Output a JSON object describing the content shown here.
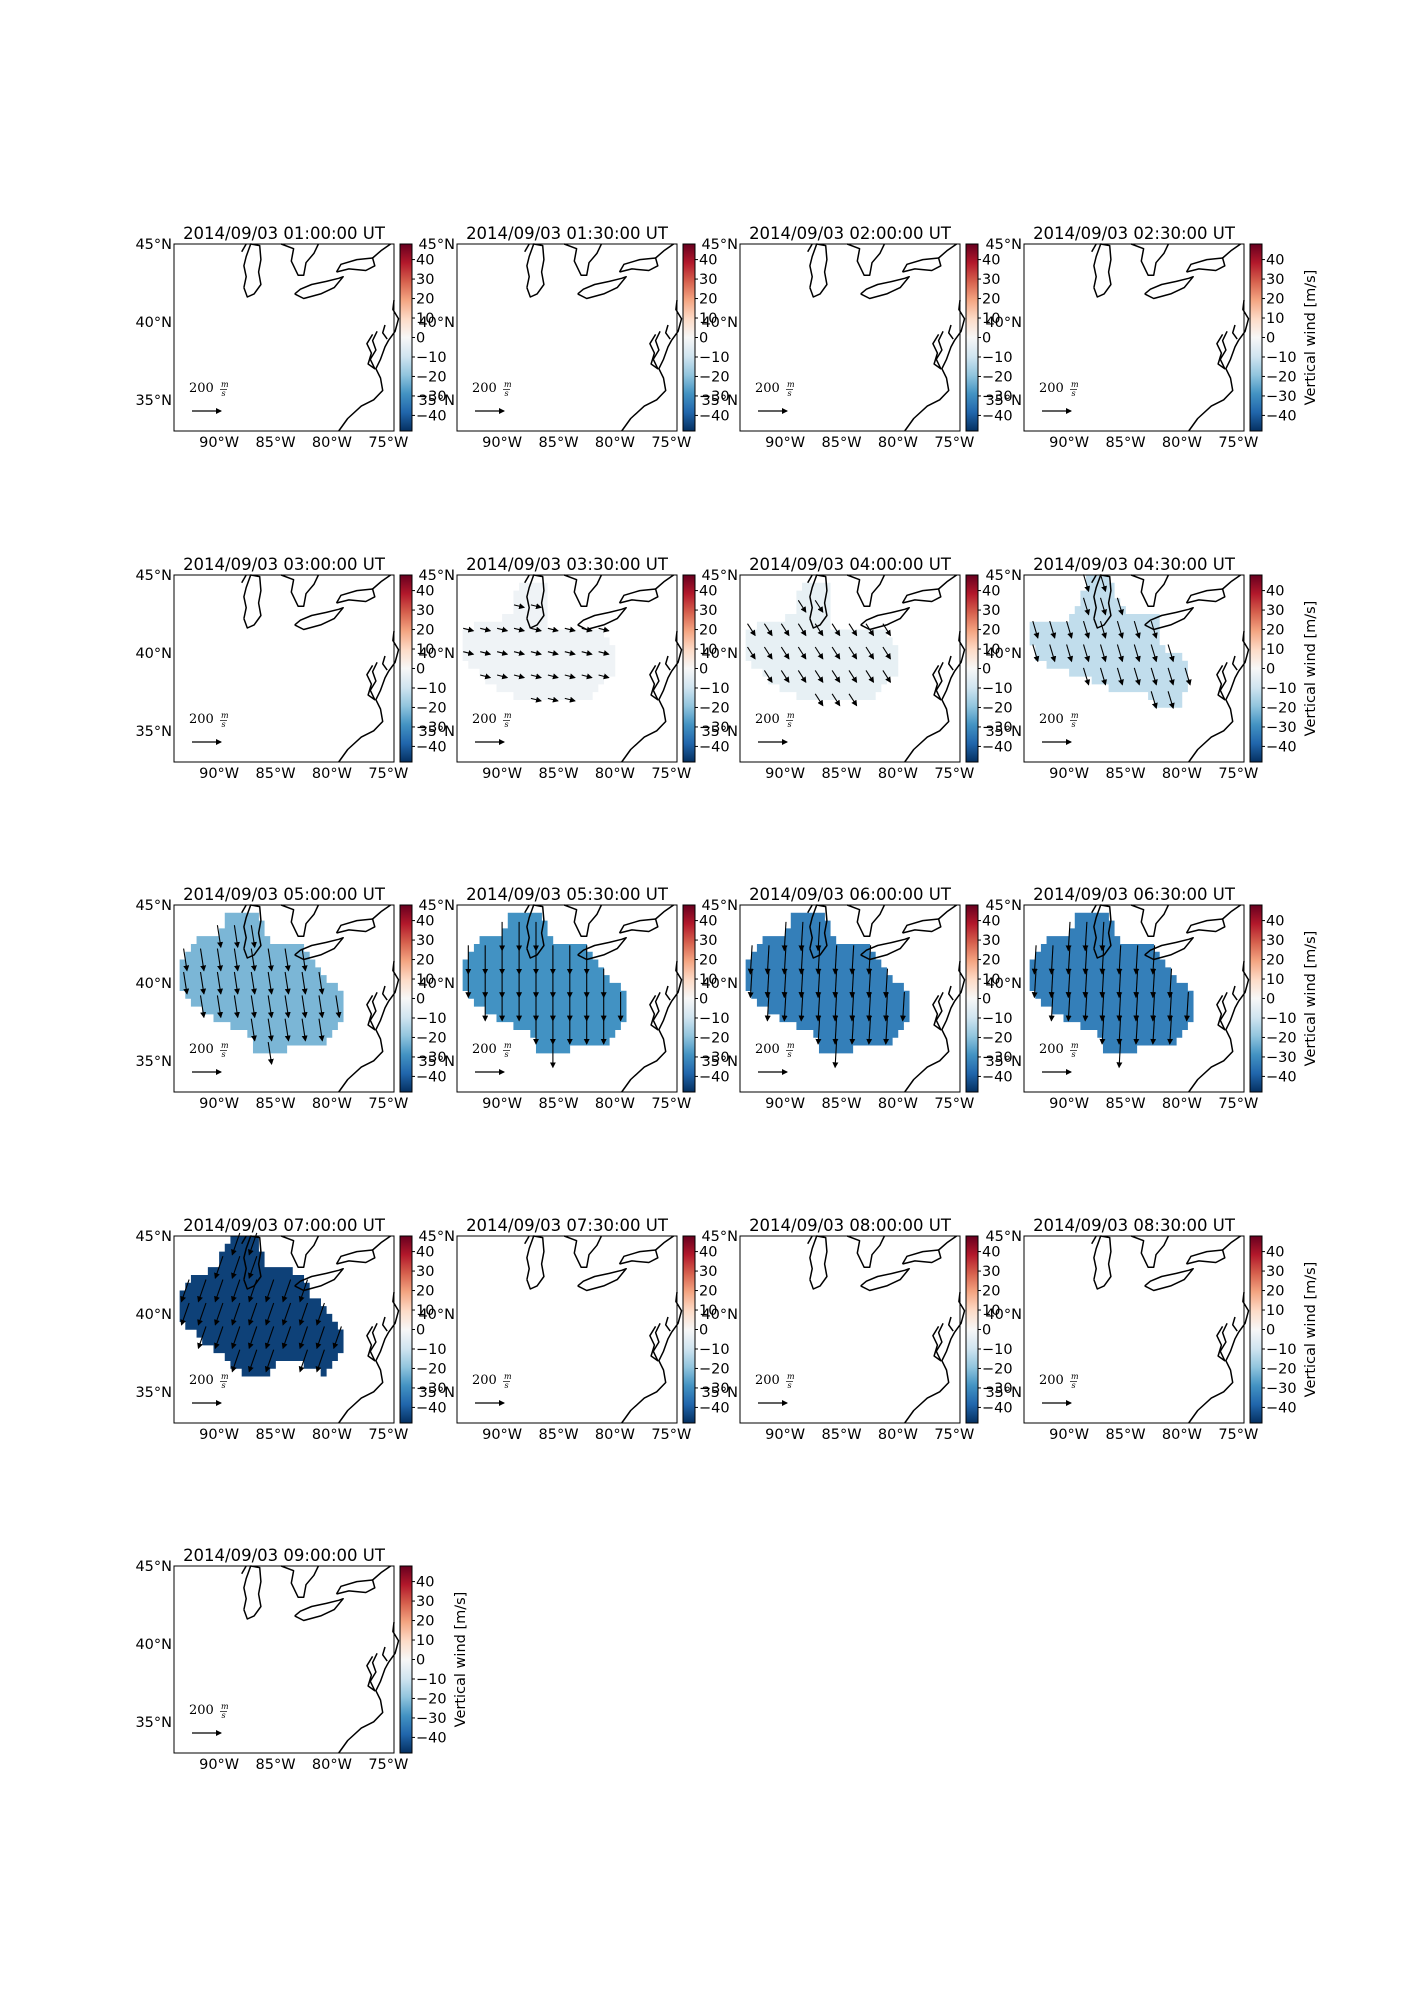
{
  "chart_data": {
    "type": "heatmap",
    "colorbar_label": "Vertical wind [m/s]",
    "colorbar_ticks": [
      40,
      30,
      20,
      10,
      0,
      -10,
      -20,
      -30,
      -40
    ],
    "colorbar_ticks_text": [
      "40",
      "30",
      "20",
      "10",
      "0",
      "−10",
      "−20",
      "−30",
      "−40"
    ],
    "clim": [
      -48,
      48
    ],
    "colormap": "RdBu",
    "lon_range": [
      -94,
      -74.5
    ],
    "lat_range": [
      33,
      45
    ],
    "lat_ticks": [
      "45°N",
      "40°N",
      "35°N"
    ],
    "lat_tick_values": [
      45,
      40,
      35
    ],
    "lon_ticks": [
      "90°W",
      "85°W",
      "80°W",
      "75°W"
    ],
    "lon_tick_values": [
      -90,
      -85,
      -80,
      -75
    ],
    "quiver_key_label": "200",
    "quiver_key_unit_num": "m",
    "quiver_key_unit_den": "s",
    "panels": [
      {
        "title": "2014/09/03 01:00:00 UT",
        "vertical_wind": null,
        "colorbar_label_shown": false
      },
      {
        "title": "2014/09/03 01:30:00 UT",
        "vertical_wind": null,
        "colorbar_label_shown": false
      },
      {
        "title": "2014/09/03 02:00:00 UT",
        "vertical_wind": null,
        "colorbar_label_shown": false
      },
      {
        "title": "2014/09/03 02:30:00 UT",
        "vertical_wind": null,
        "colorbar_label_shown": true
      },
      {
        "title": "2014/09/03 03:00:00 UT",
        "vertical_wind": null,
        "colorbar_label_shown": false
      },
      {
        "title": "2014/09/03 03:30:00 UT",
        "vertical_wind": -2,
        "wind_u": 12,
        "wind_v": -3,
        "region": "small",
        "colorbar_label_shown": false
      },
      {
        "title": "2014/09/03 04:00:00 UT",
        "vertical_wind": -4,
        "wind_u": 9,
        "wind_v": -14,
        "region": "small",
        "colorbar_label_shown": false
      },
      {
        "title": "2014/09/03 04:30:00 UT",
        "vertical_wind": -12,
        "wind_u": 6,
        "wind_v": -20,
        "region": "medium",
        "colorbar_label_shown": true
      },
      {
        "title": "2014/09/03 05:00:00 UT",
        "vertical_wind": -22,
        "wind_u": 4,
        "wind_v": -26,
        "region": "large",
        "colorbar_label_shown": false
      },
      {
        "title": "2014/09/03 05:30:00 UT",
        "vertical_wind": -29,
        "wind_u": 0,
        "wind_v": -34,
        "region": "large",
        "colorbar_label_shown": false
      },
      {
        "title": "2014/09/03 06:00:00 UT",
        "vertical_wind": -33,
        "wind_u": -2,
        "wind_v": -34,
        "region": "large",
        "colorbar_label_shown": false
      },
      {
        "title": "2014/09/03 06:30:00 UT",
        "vertical_wind": -33,
        "wind_u": -2,
        "wind_v": -34,
        "region": "large",
        "colorbar_label_shown": true
      },
      {
        "title": "2014/09/03 07:00:00 UT",
        "vertical_wind": -45,
        "wind_u": -9,
        "wind_v": -26,
        "region": "large7",
        "colorbar_label_shown": false
      },
      {
        "title": "2014/09/03 07:30:00 UT",
        "vertical_wind": null,
        "colorbar_label_shown": false
      },
      {
        "title": "2014/09/03 08:00:00 UT",
        "vertical_wind": null,
        "colorbar_label_shown": false
      },
      {
        "title": "2014/09/03 08:30:00 UT",
        "vertical_wind": null,
        "colorbar_label_shown": true
      },
      {
        "title": "2014/09/03 09:00:00 UT",
        "vertical_wind": null,
        "colorbar_label_shown": true
      }
    ]
  }
}
